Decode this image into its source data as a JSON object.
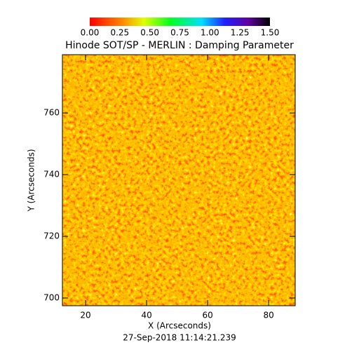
{
  "chart_data": {
    "type": "heatmap",
    "title": "Hinode SOT/SP - MERLIN : Damping Parameter",
    "xlabel": "X (Arcseconds)",
    "ylabel": "Y (Arcseconds)",
    "footer": "27-Sep-2018 11:14:21.239",
    "xlim": [
      12.4,
      88.7
    ],
    "xticks": [
      20,
      40,
      60,
      80
    ],
    "ylim": [
      697.5,
      778.9
    ],
    "yticks": [
      700,
      720,
      740,
      760
    ],
    "clim": [
      0,
      1.5
    ],
    "cticks": [
      {
        "value": 0,
        "label": "0.00"
      },
      {
        "value": 0.25,
        "label": "0.25"
      },
      {
        "value": 0.5,
        "label": "0.50"
      },
      {
        "value": 0.75,
        "label": "0.75"
      },
      {
        "value": 1,
        "label": "1.00"
      },
      {
        "value": 1.25,
        "label": "1.25"
      },
      {
        "value": 1.5,
        "label": "1.50"
      }
    ]
  }
}
